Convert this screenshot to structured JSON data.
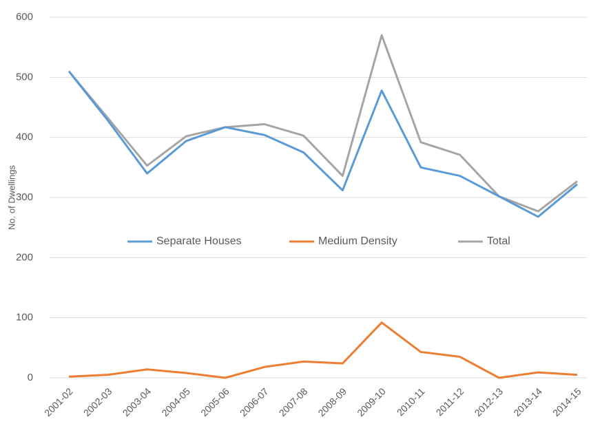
{
  "chart_data": {
    "type": "line",
    "y_label": "No. of Dwellings",
    "categories": [
      "2001-02",
      "2002-03",
      "2003-04",
      "2004-05",
      "2005-06",
      "2006-07",
      "2007-08",
      "2008-09",
      "2009-10",
      "2010-11",
      "2011-12",
      "2012-13",
      "2013-14",
      "2014-15"
    ],
    "series": [
      {
        "name": "Separate Houses",
        "color": "#5b9bd5",
        "values": [
          510,
          428,
          340,
          394,
          417,
          404,
          375,
          312,
          478,
          350,
          336,
          302,
          268,
          322
        ]
      },
      {
        "name": "Medium Density",
        "color": "#ed7d31",
        "values": [
          2,
          5,
          14,
          8,
          0,
          18,
          27,
          24,
          92,
          43,
          35,
          0,
          9,
          5
        ]
      },
      {
        "name": "Total",
        "color": "#a5a5a5",
        "values": [
          510,
          432,
          353,
          402,
          417,
          422,
          403,
          336,
          570,
          392,
          371,
          302,
          277,
          327
        ]
      }
    ],
    "ylim": [
      0,
      600
    ],
    "yticks": [
      0,
      100,
      200,
      300,
      400,
      500,
      600
    ],
    "grid": true,
    "legend": "center"
  }
}
